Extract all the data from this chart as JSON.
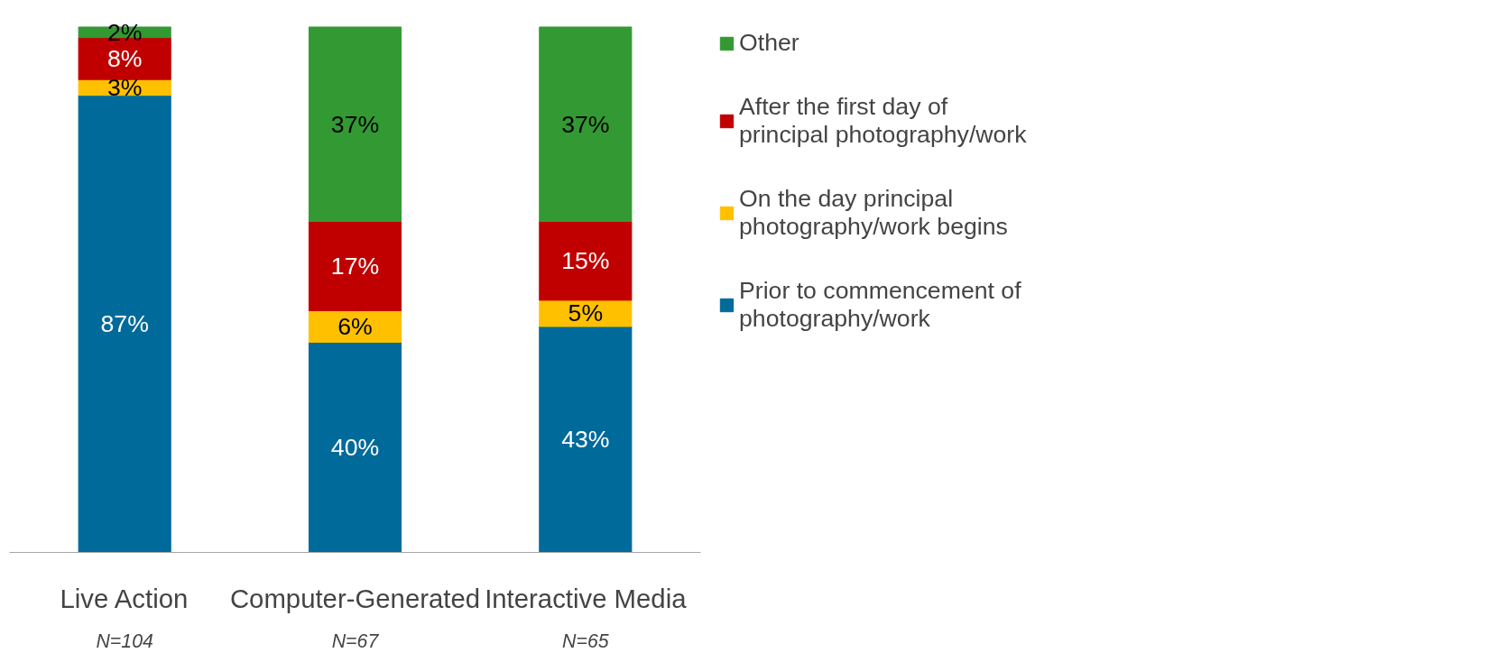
{
  "chart_data": {
    "type": "bar",
    "stacked": true,
    "legend": "right",
    "grid": false,
    "tick_labels": "x",
    "categories": [
      "Live Action",
      "Computer-Generated",
      "Interactive Media"
    ],
    "series": [
      {
        "name": "Prior to commencement of photography/work",
        "color": "#006a9a",
        "values": [
          87,
          40,
          43
        ],
        "value_labels": [
          "87%",
          "40%",
          "43%"
        ]
      },
      {
        "name": "On the day principal photography/work begins",
        "color": "#ffc000",
        "values": [
          3,
          6,
          5
        ],
        "value_labels": [
          "3%",
          "6%",
          "5%"
        ]
      },
      {
        "name": "After the first day of principal photography/work",
        "color": "#c00000",
        "values": [
          8,
          17,
          15
        ],
        "value_labels": [
          "8%",
          "17%",
          "15%"
        ]
      },
      {
        "name": "Other",
        "color": "#339933",
        "values": [
          2,
          37,
          37
        ],
        "value_labels": [
          "2%",
          "37%",
          "37%"
        ]
      }
    ],
    "annotations": [
      "N=104",
      "N=67",
      "N=65"
    ]
  }
}
